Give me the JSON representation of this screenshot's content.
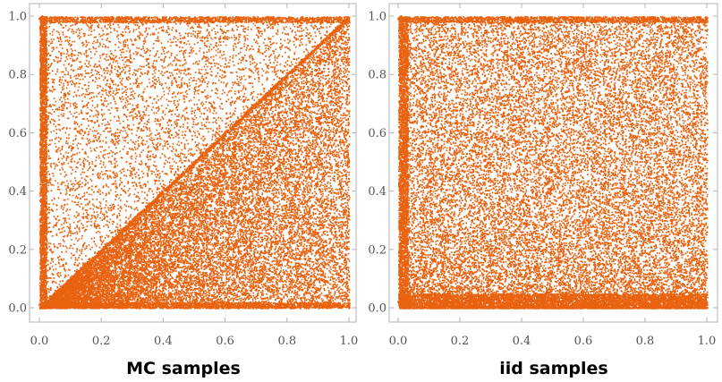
{
  "chart_data": [
    {
      "type": "scatter",
      "title": "MC samples",
      "xlabel": "",
      "ylabel": "",
      "xlim": [
        0.0,
        1.0
      ],
      "ylim": [
        0.0,
        1.0
      ],
      "xticks": [
        "0.0",
        "0.2",
        "0.4",
        "0.6",
        "0.8",
        "1.0"
      ],
      "yticks": [
        "0.0",
        "0.2",
        "0.4",
        "0.6",
        "0.8",
        "1.0"
      ],
      "grid": false,
      "legend": "none",
      "color": "#e8620f",
      "series": [
        {
          "points_shown": "approx. 30000 sampled points on the unit square",
          "features": [
            "dense vertical band at x = 0.0 to 0.02 for all y",
            "dense horizontal band at y = 0.0 to 0.02 for all x",
            "dense horizontal band at y = 0.98 to 1.0 for all x",
            "dense diagonal stripe along y = x",
            "higher point density below the diagonal y = x, lower density above it"
          ],
          "values": [
            [
              0.01,
              0.0
            ],
            [
              0.01,
              0.2
            ],
            [
              0.01,
              0.4
            ],
            [
              0.01,
              0.6
            ],
            [
              0.01,
              0.8
            ],
            [
              0.01,
              1.0
            ],
            [
              0.0,
              0.01
            ],
            [
              0.2,
              0.01
            ],
            [
              0.4,
              0.01
            ],
            [
              0.6,
              0.01
            ],
            [
              0.8,
              0.01
            ],
            [
              1.0,
              0.01
            ],
            [
              0.0,
              0.99
            ],
            [
              0.2,
              0.99
            ],
            [
              0.4,
              0.99
            ],
            [
              0.6,
              0.99
            ],
            [
              0.8,
              0.99
            ],
            [
              1.0,
              0.99
            ],
            [
              0.1,
              0.1
            ],
            [
              0.3,
              0.3
            ],
            [
              0.5,
              0.5
            ],
            [
              0.7,
              0.7
            ],
            [
              0.9,
              0.9
            ]
          ]
        }
      ]
    },
    {
      "type": "scatter",
      "title": "iid samples",
      "xlabel": "",
      "ylabel": "",
      "xlim": [
        0.0,
        1.0
      ],
      "ylim": [
        0.0,
        1.0
      ],
      "xticks": [
        "0.0",
        "0.2",
        "0.4",
        "0.6",
        "0.8",
        "1.0"
      ],
      "yticks": [
        "0.0",
        "0.2",
        "0.4",
        "0.6",
        "0.8",
        "1.0"
      ],
      "grid": false,
      "legend": "none",
      "color": "#e8620f",
      "series": [
        {
          "points_shown": "approx. 30000 sampled points on the unit square",
          "features": [
            "dense vertical band at x = 0.0 to 0.03 for all y",
            "dense horizontal band at y = 0.0 to 0.05 for all x",
            "dense horizontal band at y = 0.98 to 1.0 for all x",
            "density decreases with increasing y above the bottom band",
            "no diagonal structure"
          ],
          "values": [
            [
              0.01,
              0.0
            ],
            [
              0.01,
              0.2
            ],
            [
              0.01,
              0.4
            ],
            [
              0.01,
              0.6
            ],
            [
              0.01,
              0.8
            ],
            [
              0.01,
              1.0
            ],
            [
              0.0,
              0.02
            ],
            [
              0.2,
              0.02
            ],
            [
              0.4,
              0.02
            ],
            [
              0.6,
              0.02
            ],
            [
              0.8,
              0.02
            ],
            [
              1.0,
              0.02
            ],
            [
              0.0,
              0.99
            ],
            [
              0.2,
              0.99
            ],
            [
              0.4,
              0.99
            ],
            [
              0.6,
              0.99
            ],
            [
              0.8,
              0.99
            ],
            [
              1.0,
              0.99
            ]
          ]
        }
      ]
    }
  ]
}
